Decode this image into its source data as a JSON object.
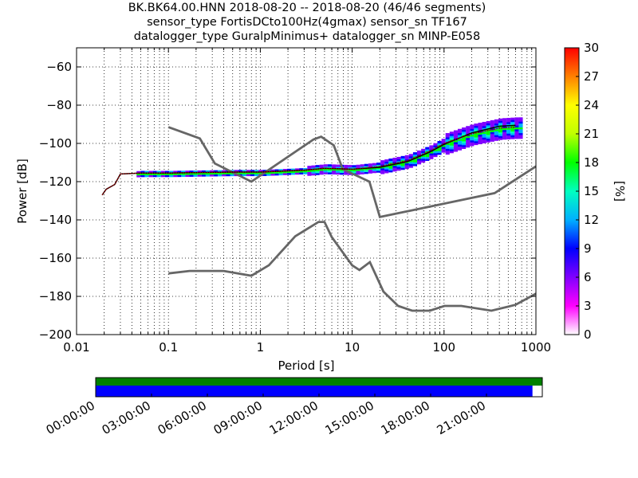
{
  "chart_data": {
    "type": "heatmap",
    "title_lines": [
      "BK.BK64.00.HNN   2018-08-20 -- 2018-08-20  (46/46 segments)",
      "sensor_type FortisDCto100Hz(4gmax) sensor_sn TF167",
      "datalogger_type GuralpMinimus+ datalogger_sn MINP-E058"
    ],
    "xlabel": "Period [s]",
    "ylabel": "Power [dB]",
    "xscale": "log",
    "xlim": [
      0.01,
      1000
    ],
    "ylim": [
      -200,
      -50
    ],
    "x_ticks": [
      {
        "value": 0.01,
        "label": "0.01"
      },
      {
        "value": 0.1,
        "label": "0.1"
      },
      {
        "value": 1,
        "label": "1"
      },
      {
        "value": 10,
        "label": "10"
      },
      {
        "value": 100,
        "label": "100"
      },
      {
        "value": 1000,
        "label": "1000"
      }
    ],
    "y_ticks": [
      {
        "value": -60,
        "label": "−60"
      },
      {
        "value": -80,
        "label": "−80"
      },
      {
        "value": -100,
        "label": "−100"
      },
      {
        "value": -120,
        "label": "−120"
      },
      {
        "value": -140,
        "label": "−140"
      },
      {
        "value": -160,
        "label": "−160"
      },
      {
        "value": -180,
        "label": "−180"
      },
      {
        "value": -200,
        "label": "−200"
      }
    ],
    "grid": "dotted",
    "colorbar": {
      "label": "[%]",
      "range": [
        0,
        30
      ],
      "ticks": [
        "0",
        "3",
        "6",
        "9",
        "12",
        "15",
        "18",
        "21",
        "24",
        "27",
        "30"
      ],
      "colormap": [
        "#ffffff",
        "#ff00ff",
        "#8000ff",
        "#0000ff",
        "#00b0ff",
        "#00ffc0",
        "#00ff00",
        "#c0ff00",
        "#ffff00",
        "#ff8000",
        "#ff0000"
      ]
    },
    "nhnm": [
      [
        0.1,
        -91.5
      ],
      [
        0.22,
        -97.4
      ],
      [
        0.32,
        -110.5
      ],
      [
        0.8,
        -120
      ],
      [
        3.8,
        -97.9
      ],
      [
        4.6,
        -96.5
      ],
      [
        6.3,
        -101
      ],
      [
        7.9,
        -113.5
      ],
      [
        15.4,
        -120
      ],
      [
        20,
        -138.5
      ],
      [
        354.8,
        -126
      ],
      [
        1000,
        -112
      ]
    ],
    "nlnm": [
      [
        0.1,
        -168
      ],
      [
        0.17,
        -166.7
      ],
      [
        0.4,
        -166.7
      ],
      [
        0.8,
        -169.2
      ],
      [
        1.24,
        -163.7
      ],
      [
        2.4,
        -148.6
      ],
      [
        4.3,
        -141.1
      ],
      [
        5,
        -141.1
      ],
      [
        6,
        -149
      ],
      [
        10,
        -163.8
      ],
      [
        12,
        -166.2
      ],
      [
        15.6,
        -162.1
      ],
      [
        21.9,
        -177.5
      ],
      [
        31.6,
        -185
      ],
      [
        45,
        -187.5
      ],
      [
        70,
        -187.5
      ],
      [
        101,
        -185
      ],
      [
        154,
        -185
      ],
      [
        328,
        -187.5
      ],
      [
        600,
        -184.4
      ],
      [
        1000,
        -178.6
      ]
    ],
    "mode_curve": [
      [
        0.019,
        -127
      ],
      [
        0.021,
        -124
      ],
      [
        0.026,
        -121.5
      ],
      [
        0.03,
        -116
      ],
      [
        0.05,
        -115.5
      ],
      [
        0.1,
        -115.5
      ],
      [
        0.5,
        -115
      ],
      [
        1,
        -115
      ],
      [
        3,
        -114
      ],
      [
        5,
        -113
      ],
      [
        10,
        -113.5
      ],
      [
        20,
        -112
      ],
      [
        40,
        -109
      ],
      [
        70,
        -104
      ],
      [
        100,
        -100
      ],
      [
        200,
        -95
      ],
      [
        400,
        -92
      ],
      [
        600,
        -91.5
      ]
    ],
    "mean_curve": [
      [
        0.019,
        -127
      ],
      [
        0.021,
        -124
      ],
      [
        0.026,
        -121.5
      ],
      [
        0.03,
        -116
      ],
      [
        0.05,
        -115.5
      ],
      [
        0.1,
        -115.5
      ],
      [
        0.5,
        -115
      ],
      [
        1,
        -115
      ],
      [
        3,
        -114
      ],
      [
        5,
        -113
      ],
      [
        10,
        -113.5
      ],
      [
        20,
        -112.5
      ],
      [
        40,
        -109.5
      ],
      [
        70,
        -104.5
      ],
      [
        100,
        -100.5
      ],
      [
        200,
        -94.5
      ],
      [
        400,
        -91
      ],
      [
        600,
        -90.5
      ]
    ],
    "coverage": {
      "time_ticks": [
        "00:00:00",
        "03:00:00",
        "06:00:00",
        "09:00:00",
        "12:00:00",
        "15:00:00",
        "18:00:00",
        "21:00:00"
      ],
      "data_fraction": 0.978,
      "upper_color": "#008000",
      "lower_color": "#0000ff"
    }
  }
}
